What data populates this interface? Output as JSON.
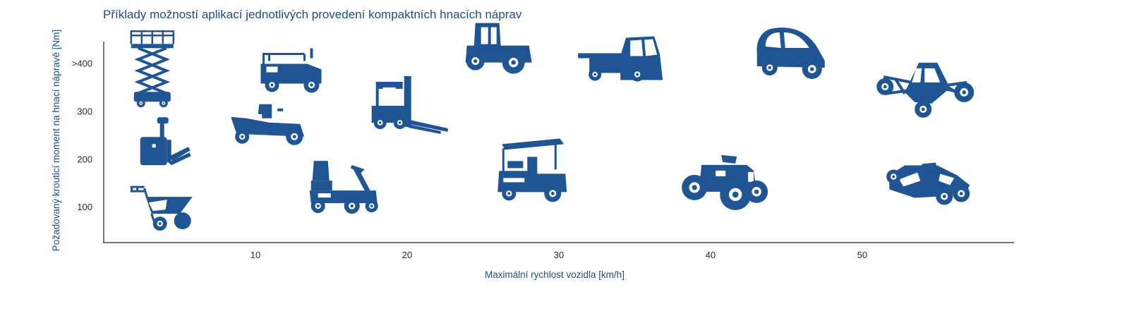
{
  "chart_data": {
    "type": "scatter",
    "title": "Příklady možností aplikací jednotlivých provedení kompaktních hnacích náprav",
    "xlabel": "Maximální rychlost vozidla [km/h]",
    "ylabel": "Požadovaný krouticí moment na hnací nápravě [Nm]",
    "x_ticks": [
      {
        "value": 10,
        "label": "10"
      },
      {
        "value": 20,
        "label": "20"
      },
      {
        "value": 30,
        "label": "30"
      },
      {
        "value": 40,
        "label": "40"
      },
      {
        "value": 50,
        "label": "50"
      }
    ],
    "y_ticks": [
      {
        "value": 100,
        "label": "100"
      },
      {
        "value": 200,
        "label": "200"
      },
      {
        "value": 300,
        "label": "300"
      },
      {
        "value": 400,
        "label": ">400"
      }
    ],
    "xlim": [
      0,
      60
    ],
    "ylim": [
      25,
      445
    ],
    "grid": false,
    "marker_color": "#1f5592",
    "points": [
      {
        "icon": "scissor-lift-icon",
        "x": 3.2,
        "y": 390
      },
      {
        "icon": "pallet-truck-icon",
        "x": 3.8,
        "y": 222
      },
      {
        "icon": "wheelbarrow-icon",
        "x": 3.8,
        "y": 100
      },
      {
        "icon": "utility-tractor-icon",
        "x": 12.3,
        "y": 378
      },
      {
        "icon": "lawn-mower-icon",
        "x": 10.8,
        "y": 270
      },
      {
        "icon": "mobility-scooter-icon",
        "x": 15.8,
        "y": 128
      },
      {
        "icon": "forklift-icon",
        "x": 19.8,
        "y": 308
      },
      {
        "icon": "tractor-icon",
        "x": 25.8,
        "y": 422
      },
      {
        "icon": "golf-cart-icon",
        "x": 28.2,
        "y": 160
      },
      {
        "icon": "flatbed-truck-icon",
        "x": 34.8,
        "y": 400
      },
      {
        "icon": "atv-quad-icon",
        "x": 40.8,
        "y": 146
      },
      {
        "icon": "microcar-icon",
        "x": 45.2,
        "y": 414
      },
      {
        "icon": "buggy-icon",
        "x": 54.2,
        "y": 345
      },
      {
        "icon": "go-kart-icon",
        "x": 54.2,
        "y": 148
      }
    ]
  }
}
